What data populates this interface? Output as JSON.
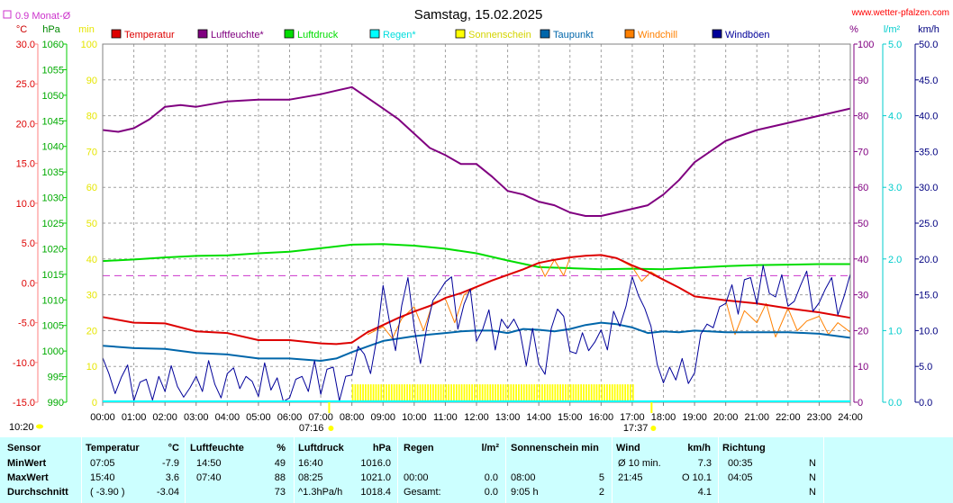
{
  "header": {
    "title": "Samstag, 15.02.2025",
    "site": "www.wetter-pfalzen.com",
    "monat_label": "0.9 Monat-Ø",
    "left_units": [
      "°C",
      "hPa",
      "min"
    ],
    "right_units": [
      "%",
      "l/m²",
      "km/h"
    ]
  },
  "chart_data": {
    "type": "line",
    "title": "Samstag, 15.02.2025",
    "x_range": [
      0,
      24
    ],
    "x_ticks": [
      "00:00",
      "01:00",
      "02:00",
      "03:00",
      "04:00",
      "05:00",
      "06:00",
      "07:00",
      "08:00",
      "09:00",
      "10:00",
      "11:00",
      "12:00",
      "13:00",
      "14:00",
      "15:00",
      "16:00",
      "17:00",
      "18:00",
      "19:00",
      "20:00",
      "21:00",
      "22:00",
      "23:00",
      "24:00"
    ],
    "axes": {
      "temperature": {
        "unit": "°C",
        "range": [
          -15,
          30
        ],
        "ticks": [
          "30.0",
          "25.0",
          "20.0",
          "15.0",
          "10.0",
          "5.0",
          "0.0",
          "-5.0",
          "-10.0",
          "-15.0"
        ],
        "color": "#cc0000"
      },
      "pressure": {
        "unit": "hPa",
        "range": [
          990,
          1060
        ],
        "ticks": [
          "1060",
          "1055",
          "1050",
          "1045",
          "1040",
          "1035",
          "1030",
          "1025",
          "1020",
          "1015",
          "1010",
          "1005",
          "1000",
          "995",
          "990"
        ],
        "color": "#00aa00"
      },
      "sunshine": {
        "unit": "min",
        "range": [
          0,
          100
        ],
        "ticks": [
          "100",
          "90",
          "80",
          "70",
          "60",
          "50",
          "40",
          "30",
          "20",
          "10",
          "0"
        ],
        "color": "#e6e600"
      },
      "humidity": {
        "unit": "%",
        "range": [
          0,
          100
        ],
        "ticks": [
          "100",
          "90",
          "80",
          "70",
          "60",
          "50",
          "40",
          "30",
          "20",
          "10",
          "0"
        ],
        "color": "#800080"
      },
      "rain": {
        "unit": "l/m²",
        "range": [
          0,
          5
        ],
        "ticks": [
          "5.0",
          "4.0",
          "3.0",
          "2.0",
          "1.0",
          "0.0"
        ],
        "color": "#00cccc"
      },
      "wind": {
        "unit": "km/h",
        "range": [
          0,
          50
        ],
        "ticks": [
          "50.0",
          "45.0",
          "40.0",
          "35.0",
          "30.0",
          "25.0",
          "20.0",
          "15.0",
          "10.0",
          "5.0",
          "0.0"
        ],
        "color": "#000080"
      }
    },
    "legend": [
      {
        "name": "Temperatur",
        "color": "#dd0000"
      },
      {
        "name": "Luftfeuchte*",
        "color": "#800080"
      },
      {
        "name": "Luftdruck",
        "color": "#00dd00"
      },
      {
        "name": "Regen*",
        "color": "#00ffff"
      },
      {
        "name": "Sonnenschein",
        "color": "#ffff00"
      },
      {
        "name": "Taupunkt",
        "color": "#0066aa"
      },
      {
        "name": "Windchill",
        "color": "#ff8000"
      },
      {
        "name": "Windböen",
        "color": "#000099"
      }
    ],
    "series": [
      {
        "name": "Temperatur",
        "axis": "temperature",
        "color": "#dd0000",
        "x": [
          0,
          1,
          2,
          3,
          4,
          5,
          6,
          7,
          7.5,
          8,
          8.5,
          9,
          9.5,
          10,
          10.5,
          11,
          11.5,
          12,
          12.5,
          13,
          13.5,
          14,
          14.5,
          15,
          15.5,
          16,
          16.5,
          17,
          17.5,
          18,
          18.5,
          19,
          20,
          21,
          22,
          23,
          24
        ],
        "y": [
          -4.3,
          -5.0,
          -5.1,
          -6.1,
          -6.3,
          -7.2,
          -7.2,
          -7.6,
          -7.7,
          -7.5,
          -6.2,
          -5.3,
          -4.4,
          -3.6,
          -2.9,
          -1.9,
          -1.3,
          -0.5,
          0.3,
          1.0,
          1.7,
          2.5,
          2.9,
          3.2,
          3.4,
          3.5,
          3.1,
          2.2,
          1.4,
          0.4,
          -0.6,
          -1.7,
          -2.2,
          -2.6,
          -3.2,
          -3.7,
          -4.4
        ]
      },
      {
        "name": "Luftfeuchte*",
        "axis": "humidity",
        "color": "#800080",
        "x": [
          0,
          0.5,
          1,
          1.5,
          2,
          2.5,
          3,
          4,
          5,
          6,
          7,
          7.5,
          8,
          8.5,
          9,
          9.5,
          10,
          10.5,
          11,
          11.5,
          12,
          12.5,
          13,
          13.5,
          14,
          14.5,
          15,
          15.5,
          16,
          16.5,
          17,
          17.5,
          18,
          18.5,
          19,
          19.5,
          20,
          21,
          22,
          23,
          24
        ],
        "y": [
          76,
          75.5,
          76.5,
          79,
          82.5,
          83,
          82.5,
          84,
          84.5,
          84.5,
          86,
          87,
          88,
          85,
          82,
          79,
          75,
          71,
          69,
          66.5,
          66.5,
          63,
          59,
          58,
          56,
          55,
          53,
          52,
          52,
          53,
          54,
          55,
          58,
          62,
          67,
          70,
          73,
          76,
          78,
          80,
          82
        ]
      },
      {
        "name": "Luftdruck",
        "axis": "pressure",
        "color": "#00dd00",
        "x": [
          0,
          1,
          2,
          3,
          4,
          5,
          6,
          7,
          8,
          9,
          10,
          11,
          12,
          13,
          14,
          15,
          16,
          17,
          18,
          19,
          20,
          21,
          22,
          23,
          24
        ],
        "y": [
          1017.6,
          1017.9,
          1018.3,
          1018.6,
          1018.7,
          1019.1,
          1019.4,
          1020.1,
          1020.8,
          1020.9,
          1020.6,
          1020.0,
          1019.1,
          1017.7,
          1016.4,
          1016.2,
          1016.0,
          1016.1,
          1016.0,
          1016.3,
          1016.6,
          1016.8,
          1016.9,
          1017.0,
          1017.0
        ]
      },
      {
        "name": "Taupunkt",
        "axis": "temperature",
        "color": "#0066aa",
        "x": [
          0,
          1,
          2,
          3,
          4,
          5,
          6,
          7,
          7.5,
          8,
          8.5,
          9,
          9.5,
          10,
          10.5,
          11,
          11.5,
          12,
          12.5,
          13,
          13.5,
          14,
          14.5,
          15,
          15.5,
          16,
          16.5,
          17,
          17.5,
          18,
          18.5,
          19,
          20,
          21,
          22,
          23,
          24
        ],
        "y": [
          -7.9,
          -8.2,
          -8.3,
          -8.8,
          -9.0,
          -9.5,
          -9.5,
          -9.8,
          -9.5,
          -8.7,
          -8.0,
          -7.3,
          -7.0,
          -6.7,
          -6.5,
          -6.3,
          -6.1,
          -6.0,
          -6.0,
          -6.3,
          -5.8,
          -5.9,
          -6.1,
          -5.8,
          -5.3,
          -5.0,
          -5.2,
          -5.6,
          -6.3,
          -6.1,
          -6.2,
          -6.0,
          -6.2,
          -6.2,
          -6.2,
          -6.4,
          -6.9
        ]
      },
      {
        "name": "Windchill",
        "axis": "temperature",
        "color": "#ff8000",
        "x": [
          8.5,
          9,
          9.3,
          9.6,
          10,
          10.3,
          10.6,
          11,
          11.3,
          11.6,
          12,
          12.5,
          13,
          13.5,
          14,
          14.2,
          14.5,
          14.8,
          15,
          15.5,
          16,
          16.5,
          17,
          17.3,
          17.6,
          18,
          18.5,
          19,
          20,
          20.3,
          20.6,
          21,
          21.3,
          21.6,
          22,
          22.3,
          22.6,
          23,
          23.3,
          23.6,
          24
        ],
        "y": [
          -6.5,
          -5.5,
          -7.0,
          -4.5,
          -3.0,
          -6.0,
          -2.5,
          -2.0,
          -5.0,
          -1.5,
          -0.5,
          0.3,
          1.0,
          1.7,
          2.5,
          0.8,
          2.9,
          0.9,
          3.2,
          3.4,
          3.5,
          3.1,
          2.0,
          0.2,
          1.4,
          0.4,
          -0.6,
          -1.7,
          -2.2,
          -6.5,
          -3.5,
          -5.0,
          -2.6,
          -6.8,
          -3.2,
          -6.0,
          -4.8,
          -4.2,
          -6.5,
          -5.0,
          -6.2
        ]
      },
      {
        "name": "Windböen",
        "axis": "wind",
        "color": "#000099",
        "x": [
          0,
          0.2,
          0.4,
          0.6,
          0.8,
          1,
          1.2,
          1.4,
          1.6,
          1.8,
          2,
          2.2,
          2.4,
          2.6,
          2.8,
          3,
          3.2,
          3.4,
          3.6,
          3.8,
          4,
          4.2,
          4.4,
          4.6,
          4.8,
          5,
          5.2,
          5.4,
          5.6,
          5.8,
          6,
          6.2,
          6.4,
          6.6,
          6.8,
          7,
          7.2,
          7.4,
          7.6,
          7.8,
          8,
          8.2,
          8.4,
          8.6,
          8.8,
          9,
          9.2,
          9.4,
          9.6,
          9.8,
          10,
          10.2,
          10.4,
          10.6,
          10.8,
          11,
          11.2,
          11.4,
          11.6,
          11.8,
          12,
          12.2,
          12.4,
          12.6,
          12.8,
          13,
          13.2,
          13.4,
          13.6,
          13.8,
          14,
          14.2,
          14.4,
          14.6,
          14.8,
          15,
          15.2,
          15.4,
          15.6,
          15.8,
          16,
          16.2,
          16.4,
          16.6,
          16.8,
          17,
          17.2,
          17.4,
          17.6,
          17.8,
          18,
          18.2,
          18.4,
          18.6,
          18.8,
          19,
          19.2,
          19.4,
          19.6,
          19.8,
          20,
          20.2,
          20.4,
          20.6,
          20.8,
          21,
          21.2,
          21.4,
          21.6,
          21.8,
          22,
          22.2,
          22.4,
          22.6,
          22.8,
          23,
          23.2,
          23.4,
          23.6,
          23.8,
          24
        ],
        "y": [
          6.2,
          4.0,
          1.2,
          3.5,
          5.2,
          0.2,
          2.8,
          3.2,
          0.3,
          3.6,
          1.5,
          5.1,
          2.2,
          0.7,
          2.0,
          3.6,
          1.5,
          5.8,
          2.5,
          0.6,
          4.0,
          4.8,
          1.9,
          3.6,
          2.9,
          0.8,
          5.5,
          1.7,
          3.4,
          0.1,
          0.6,
          3.2,
          3.6,
          1.5,
          5.8,
          1.1,
          4.6,
          4.9,
          0.2,
          3.6,
          3.8,
          7.8,
          6.7,
          4.0,
          8.9,
          16.3,
          11.4,
          7.2,
          13.5,
          17.4,
          10.5,
          5.4,
          10.4,
          14.2,
          15.4,
          16.8,
          17.5,
          10.2,
          13.7,
          15.8,
          8.5,
          10.2,
          12.9,
          7.3,
          11.6,
          10.3,
          11.6,
          9.8,
          5.1,
          10.3,
          5.3,
          3.9,
          10.3,
          13.0,
          12.0,
          7.1,
          6.8,
          9.7,
          7.2,
          8.4,
          10.1,
          7.3,
          12.7,
          10.6,
          13.4,
          17.5,
          14.9,
          13.1,
          10.6,
          5.3,
          2.7,
          4.9,
          3.1,
          6.1,
          2.6,
          4.1,
          9.5,
          10.9,
          10.4,
          13.3,
          13.8,
          16.4,
          12.3,
          17.1,
          17.4,
          13.7,
          19.1,
          15.2,
          14.7,
          17.8,
          13.4,
          14.1,
          16.3,
          18.3,
          12.7,
          13.9,
          15.8,
          17.4,
          12.2,
          14.8,
          17.9
        ]
      }
    ],
    "sunshine": {
      "start": 8.0,
      "end": 17.1,
      "value_min": 5,
      "color": "#ffff00"
    },
    "reference_line": {
      "axis": "temperature",
      "value": 0.9,
      "label": "0.9 Monat-Ø",
      "color": "#cc33cc",
      "style": "dashed"
    },
    "markers": [
      {
        "label": "07:16",
        "hour": 7.27,
        "kind": "sunrise"
      },
      {
        "label": "17:37",
        "hour": 17.62,
        "kind": "sunset"
      },
      {
        "label": "10:20",
        "kind": "day-length"
      }
    ],
    "grid": true
  },
  "stats": {
    "headers": {
      "sensor": "Sensor",
      "temperature": "Temperatur",
      "temperature_unit": "°C",
      "humidity": "Luftfeuchte",
      "humidity_unit": "%",
      "pressure": "Luftdruck",
      "pressure_unit": "hPa",
      "rain": "Regen",
      "rain_unit": "l/m²",
      "sunshine": "Sonnenschein min",
      "wind": "Wind",
      "wind_unit": "km/h",
      "direction": "Richtung"
    },
    "rows": [
      {
        "label": "MinWert",
        "temp_time": "07:05",
        "temp_val": "-7.9",
        "hum_time": "14:50",
        "hum_val": "49",
        "press_time": "16:40",
        "press_val": "1016.0",
        "rain_time": "",
        "rain_val": "",
        "sun_time": "",
        "sun_val": "",
        "wind_time": "Ø 10 min.",
        "wind_val": "7.3",
        "dir_time": "00:35",
        "dir_val": "N"
      },
      {
        "label": "MaxWert",
        "temp_time": "15:40",
        "temp_val": "3.6",
        "hum_time": "07:40",
        "hum_val": "88",
        "press_time": "08:25",
        "press_val": "1021.0",
        "rain_time": "00:00",
        "rain_val": "0.0",
        "sun_time": "08:00",
        "sun_val": "5",
        "wind_time": "21:45",
        "wind_val": "O 10.1",
        "dir_time": "04:05",
        "dir_val": "N"
      },
      {
        "label": "Durchschnitt",
        "temp_time": "( -3.90 )",
        "temp_val": "-3.04",
        "hum_time": "",
        "hum_val": "73",
        "press_time": "^1.3hPa/h",
        "press_val": "1018.4",
        "rain_time": "Gesamt:",
        "rain_val": "0.0",
        "sun_time": "9:05 h",
        "sun_val": "2",
        "wind_time": "",
        "wind_val": "4.1",
        "dir_time": "",
        "dir_val": "N"
      }
    ]
  }
}
